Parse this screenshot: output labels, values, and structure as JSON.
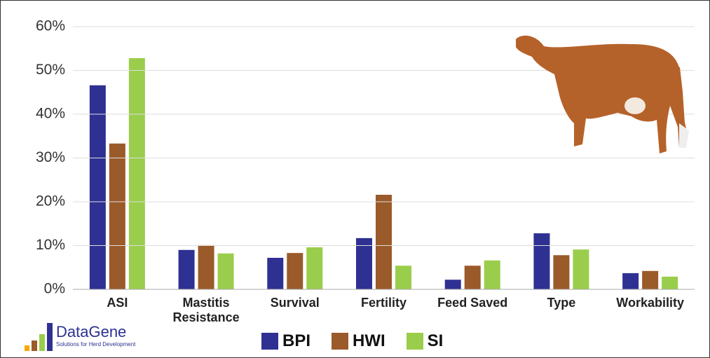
{
  "chart_data": {
    "type": "bar",
    "categories": [
      "ASI",
      "Mastitis Resistance",
      "Survival",
      "Fertility",
      "Feed Saved",
      "Type",
      "Workability"
    ],
    "series": [
      {
        "name": "BPI",
        "color": "#2e3192",
        "values": [
          46.6,
          9.0,
          7.2,
          11.7,
          2.2,
          12.8,
          3.7
        ]
      },
      {
        "name": "HWI",
        "color": "#9b5a2a",
        "values": [
          33.3,
          10.1,
          8.3,
          21.6,
          5.4,
          7.8,
          4.2
        ]
      },
      {
        "name": "SI",
        "color": "#9acd4c",
        "values": [
          52.8,
          8.2,
          9.6,
          5.4,
          6.6,
          9.1,
          2.9
        ]
      }
    ],
    "ylim": [
      0,
      60
    ],
    "yticks": [
      {
        "value": 0,
        "label": "0%"
      },
      {
        "value": 10,
        "label": "10%"
      },
      {
        "value": 20,
        "label": "20%"
      },
      {
        "value": 30,
        "label": "30%"
      },
      {
        "value": 40,
        "label": "40%"
      },
      {
        "value": 50,
        "label": "50%"
      },
      {
        "value": 60,
        "label": "60%"
      }
    ],
    "grid": true
  },
  "logo": {
    "name": "DataGene",
    "tagline": "Solutions for Herd Development"
  }
}
